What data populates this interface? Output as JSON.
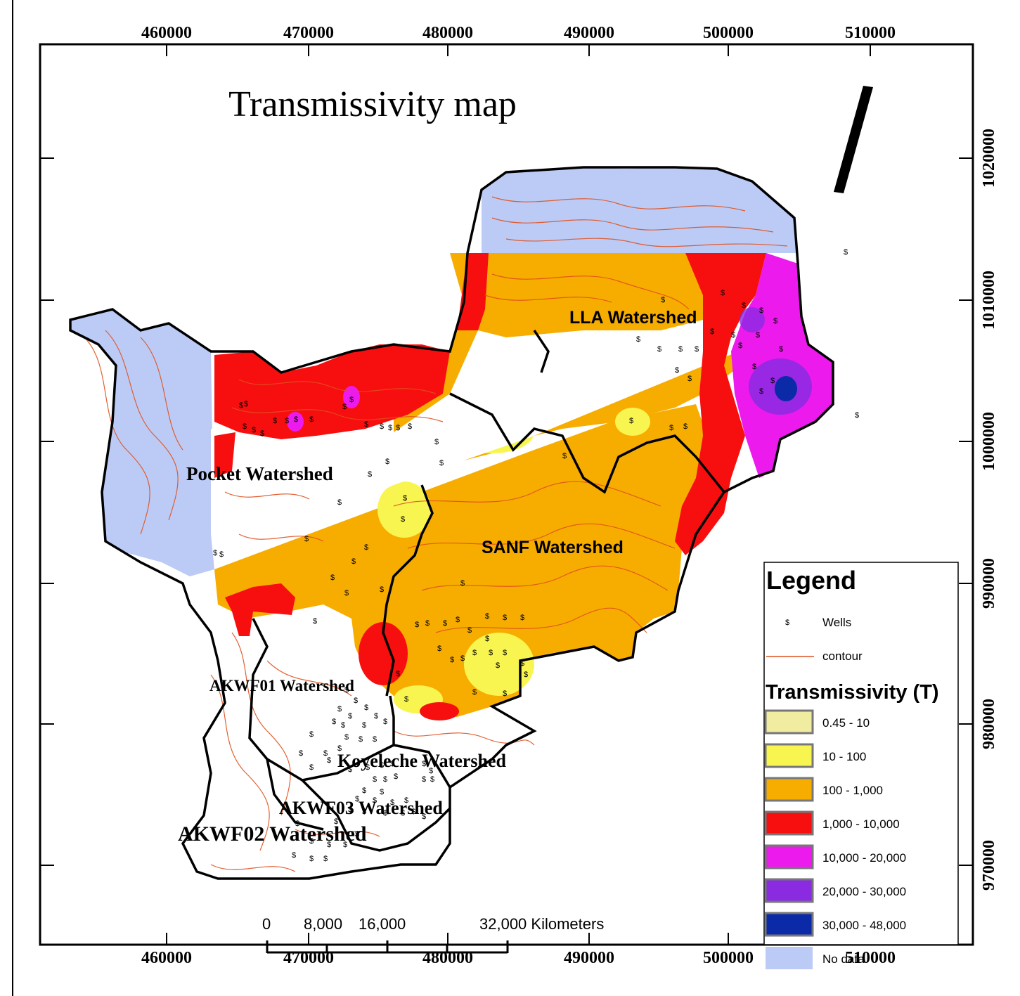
{
  "title": "Transmissivity map",
  "x_ticks": [
    "460000",
    "470000",
    "480000",
    "490000",
    "500000",
    "510000"
  ],
  "y_ticks": [
    "1020000",
    "1010000",
    "1000000",
    "990000",
    "980000",
    "970000"
  ],
  "watersheds": {
    "lla": "LLA Watershed",
    "pocket": "Pocket Watershed",
    "sanf": "SANF Watershed",
    "akwf01": "AKWF01 Watershed",
    "koyeleche": "Koyeleche Watershed",
    "akwf03": "AKWF03 Watershed",
    "akwf02": "AKWF02 Watershed"
  },
  "well_symbol": "$",
  "legend": {
    "title": "Legend",
    "wells_label": "Wells",
    "contour_label": "contour",
    "subtitle": "Transmissivity (T)",
    "classes": [
      {
        "label": "0.45 - 10",
        "color": "#f0eca0"
      },
      {
        "label": "10 - 100",
        "color": "#f8f550"
      },
      {
        "label": "100 - 1,000",
        "color": "#f7ad00"
      },
      {
        "label": "1,000 - 10,000",
        "color": "#f70f0f"
      },
      {
        "label": "10,000 - 20,000",
        "color": "#ec1aec"
      },
      {
        "label": "20,000 - 30,000",
        "color": "#8a2be2"
      },
      {
        "label": "30,000 - 48,000",
        "color": "#0a2aa8"
      },
      {
        "label": "No data",
        "color": "#bccbf5"
      }
    ]
  },
  "scale_bar": {
    "labels": [
      "0",
      "8,000",
      "16,000",
      "32,000 Kilometers"
    ]
  }
}
